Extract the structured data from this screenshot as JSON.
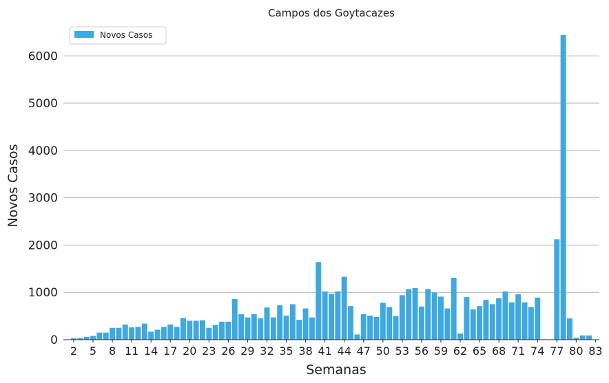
{
  "chart_data": {
    "type": "bar",
    "title": "Campos dos Goytacazes",
    "xlabel": "Semanas",
    "ylabel": "Novos Casos",
    "legend": {
      "entries": [
        "Novos Casos"
      ],
      "placement": "top-left"
    },
    "color": "#3ea8e0",
    "grid": "horizontal",
    "ylim": [
      0,
      6600
    ],
    "yticks": [
      0,
      1000,
      2000,
      3000,
      4000,
      5000,
      6000
    ],
    "x_tick_labels": [
      2,
      5,
      8,
      11,
      14,
      17,
      20,
      23,
      26,
      29,
      32,
      35,
      38,
      41,
      44,
      47,
      50,
      53,
      56,
      59,
      62,
      65,
      68,
      71,
      74,
      77,
      80,
      83
    ],
    "x": [
      1,
      2,
      3,
      4,
      5,
      6,
      7,
      8,
      9,
      10,
      11,
      12,
      13,
      14,
      15,
      16,
      17,
      18,
      19,
      20,
      21,
      22,
      23,
      24,
      25,
      26,
      27,
      28,
      29,
      30,
      31,
      32,
      33,
      34,
      35,
      36,
      37,
      38,
      39,
      40,
      41,
      42,
      43,
      44,
      45,
      46,
      47,
      48,
      49,
      50,
      51,
      52,
      53,
      54,
      55,
      56,
      57,
      58,
      59,
      60,
      61,
      62,
      63,
      64,
      65,
      66,
      67,
      68,
      69,
      70,
      71,
      72,
      73,
      74,
      75,
      76,
      77,
      78,
      79,
      80,
      81,
      82,
      83
    ],
    "values": [
      5,
      30,
      35,
      60,
      80,
      150,
      150,
      250,
      250,
      320,
      260,
      270,
      340,
      170,
      210,
      270,
      320,
      270,
      460,
      400,
      400,
      410,
      250,
      310,
      380,
      380,
      860,
      540,
      470,
      540,
      450,
      680,
      470,
      730,
      510,
      750,
      420,
      660,
      470,
      1640,
      1020,
      970,
      1020,
      1330,
      710,
      110,
      540,
      510,
      480,
      780,
      690,
      500,
      940,
      1070,
      1090,
      700,
      1070,
      1000,
      910,
      660,
      1310,
      130,
      900,
      640,
      710,
      840,
      750,
      880,
      1020,
      790,
      960,
      790,
      690,
      890,
      0,
      0,
      2120,
      6440,
      450,
      40,
      90,
      90,
      0
    ]
  }
}
